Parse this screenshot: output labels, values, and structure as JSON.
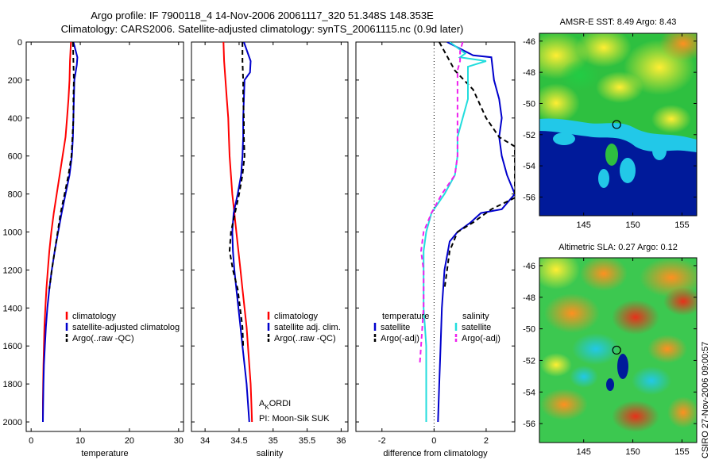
{
  "header": {
    "line1": "Argo profile: IF 7900118_4 14-Nov-2006 20061117_320 51.348S 148.353E",
    "line2": "Climatology: CARS2006. Satellite-adjusted climatology: synTS_20061115.nc (0.9d later)"
  },
  "colors": {
    "red": "#ff0000",
    "blue": "#0000cc",
    "black": "#000000",
    "cyan": "#22dddd",
    "magenta": "#ee22ee"
  },
  "chart_data": [
    {
      "id": "temperature",
      "type": "line",
      "xlabel": "temperature",
      "ylabel": "",
      "xlim": [
        -1,
        31
      ],
      "ylim": [
        2050,
        0
      ],
      "xticks": [
        0,
        10,
        20,
        30
      ],
      "yticks": [
        0,
        200,
        400,
        600,
        800,
        1000,
        1200,
        1400,
        1600,
        1800,
        2000
      ],
      "legend": {
        "position": "bottom-right",
        "entries": [
          "climatology",
          "satellite-adjusted climatolog",
          "Argo(..raw -QC)"
        ]
      },
      "series": [
        {
          "name": "climatology",
          "color": "red",
          "dash": false,
          "points": [
            [
              8.1,
              0
            ],
            [
              7.9,
              100
            ],
            [
              7.8,
              200
            ],
            [
              7.6,
              300
            ],
            [
              7.3,
              400
            ],
            [
              7.0,
              500
            ],
            [
              6.4,
              600
            ],
            [
              5.8,
              700
            ],
            [
              5.2,
              800
            ],
            [
              4.6,
              900
            ],
            [
              4.1,
              1000
            ],
            [
              3.7,
              1100
            ],
            [
              3.4,
              1200
            ],
            [
              3.1,
              1300
            ],
            [
              2.9,
              1400
            ],
            [
              2.7,
              1500
            ],
            [
              2.6,
              1600
            ],
            [
              2.5,
              1700
            ],
            [
              2.45,
              1800
            ],
            [
              2.4,
              1900
            ],
            [
              2.4,
              2000
            ]
          ]
        },
        {
          "name": "satellite-adjusted climatolog",
          "color": "blue",
          "dash": false,
          "points": [
            [
              8.6,
              0
            ],
            [
              9.4,
              80
            ],
            [
              9.3,
              120
            ],
            [
              8.8,
              200
            ],
            [
              8.7,
              300
            ],
            [
              8.6,
              400
            ],
            [
              8.5,
              500
            ],
            [
              8.3,
              600
            ],
            [
              7.8,
              700
            ],
            [
              7.0,
              800
            ],
            [
              6.2,
              900
            ],
            [
              5.5,
              1000
            ],
            [
              4.8,
              1100
            ],
            [
              4.2,
              1200
            ],
            [
              3.7,
              1300
            ],
            [
              3.3,
              1400
            ],
            [
              3.0,
              1500
            ],
            [
              2.8,
              1600
            ],
            [
              2.6,
              1700
            ],
            [
              2.5,
              1800
            ],
            [
              2.45,
              1900
            ],
            [
              2.4,
              2000
            ]
          ]
        },
        {
          "name": "Argo(..raw -QC)",
          "color": "black",
          "dash": true,
          "points": [
            [
              8.5,
              0
            ],
            [
              8.6,
              100
            ],
            [
              8.7,
              200
            ],
            [
              8.6,
              300
            ],
            [
              8.6,
              400
            ],
            [
              8.4,
              500
            ],
            [
              8.2,
              600
            ],
            [
              7.6,
              700
            ],
            [
              6.8,
              800
            ],
            [
              6.0,
              900
            ],
            [
              5.4,
              1000
            ],
            [
              4.8,
              1100
            ],
            [
              4.2,
              1200
            ],
            [
              3.7,
              1300
            ]
          ]
        }
      ]
    },
    {
      "id": "salinity",
      "type": "line",
      "xlabel": "salinity",
      "ylabel": "",
      "xlim": [
        33.8,
        36.1
      ],
      "ylim": [
        2050,
        0
      ],
      "xticks": [
        34,
        34.5,
        35,
        35.5,
        36
      ],
      "yticks": [
        0,
        200,
        400,
        600,
        800,
        1000,
        1200,
        1400,
        1600,
        1800,
        2000
      ],
      "legend": {
        "position": "bottom-right",
        "entries": [
          "climatology",
          "satellite adj. clim.",
          "Argo(..raw -QC)"
        ]
      },
      "series": [
        {
          "name": "climatology",
          "color": "red",
          "dash": false,
          "points": [
            [
              34.27,
              0
            ],
            [
              34.28,
              100
            ],
            [
              34.3,
              200
            ],
            [
              34.32,
              300
            ],
            [
              34.34,
              400
            ],
            [
              34.35,
              500
            ],
            [
              34.36,
              600
            ],
            [
              34.38,
              700
            ],
            [
              34.4,
              800
            ],
            [
              34.43,
              900
            ],
            [
              34.46,
              1000
            ],
            [
              34.49,
              1100
            ],
            [
              34.52,
              1200
            ],
            [
              34.55,
              1300
            ],
            [
              34.58,
              1400
            ],
            [
              34.61,
              1500
            ],
            [
              34.63,
              1600
            ],
            [
              34.65,
              1700
            ],
            [
              34.67,
              1800
            ],
            [
              34.68,
              1900
            ],
            [
              34.69,
              2000
            ]
          ]
        },
        {
          "name": "satellite adj. clim.",
          "color": "blue",
          "dash": false,
          "points": [
            [
              34.57,
              0
            ],
            [
              34.62,
              50
            ],
            [
              34.67,
              100
            ],
            [
              34.66,
              160
            ],
            [
              34.58,
              200
            ],
            [
              34.57,
              300
            ],
            [
              34.56,
              400
            ],
            [
              34.56,
              500
            ],
            [
              34.55,
              600
            ],
            [
              34.53,
              700
            ],
            [
              34.48,
              800
            ],
            [
              34.42,
              900
            ],
            [
              34.4,
              1000
            ],
            [
              34.41,
              1100
            ],
            [
              34.43,
              1200
            ],
            [
              34.46,
              1300
            ],
            [
              34.49,
              1400
            ],
            [
              34.52,
              1500
            ],
            [
              34.55,
              1600
            ],
            [
              34.58,
              1700
            ],
            [
              34.61,
              1800
            ],
            [
              34.63,
              1900
            ],
            [
              34.65,
              2000
            ]
          ]
        },
        {
          "name": "Argo(..raw -QC)",
          "color": "black",
          "dash": true,
          "points": [
            [
              34.55,
              0
            ],
            [
              34.55,
              100
            ],
            [
              34.56,
              200
            ],
            [
              34.56,
              300
            ],
            [
              34.57,
              400
            ],
            [
              34.57,
              500
            ],
            [
              34.58,
              600
            ],
            [
              34.55,
              700
            ],
            [
              34.5,
              800
            ],
            [
              34.44,
              900
            ],
            [
              34.38,
              1000
            ],
            [
              34.36,
              1100
            ],
            [
              34.41,
              1200
            ],
            [
              34.48,
              1300
            ],
            [
              34.55,
              1500
            ],
            [
              34.56,
              1600
            ]
          ]
        }
      ],
      "annotation": {
        "a_prefix": "A",
        "a_sub": "K",
        "a_suffix": "ORDI",
        "pi": "PI: Moon-Sik SUK"
      }
    },
    {
      "id": "difference",
      "type": "line",
      "xlabel": "difference from climatology",
      "ylabel": "",
      "xlim": [
        -3,
        3.1
      ],
      "ylim": [
        2050,
        0
      ],
      "xticks": [
        -2,
        0,
        2
      ],
      "yticks": [
        0,
        200,
        400,
        600,
        800,
        1000,
        1200,
        1400,
        1600,
        1800,
        2000
      ],
      "zero_line": true,
      "legend": {
        "position": "bottom",
        "col1_title": "temperature",
        "col2_title": "salinity",
        "entries_col1": [
          "satellite",
          "Argo(-adj)"
        ],
        "entries_col2": [
          "satellite",
          "Argo(-adj)"
        ]
      },
      "series": [
        {
          "name": "temperature satellite",
          "color": "blue",
          "dash": false,
          "points": [
            [
              0.5,
              0
            ],
            [
              1.5,
              70
            ],
            [
              2.2,
              80
            ],
            [
              2.3,
              200
            ],
            [
              2.5,
              300
            ],
            [
              2.6,
              400
            ],
            [
              2.5,
              500
            ],
            [
              2.6,
              600
            ],
            [
              2.8,
              700
            ],
            [
              3.1,
              800
            ],
            [
              2.6,
              880
            ],
            [
              1.8,
              900
            ],
            [
              1.4,
              950
            ],
            [
              0.9,
              1000
            ],
            [
              0.6,
              1050
            ],
            [
              0.4,
              1200
            ],
            [
              0.3,
              1400
            ],
            [
              0.25,
              1600
            ],
            [
              0.2,
              1800
            ],
            [
              0.15,
              2000
            ]
          ]
        },
        {
          "name": "temperature Argo(-adj)",
          "color": "black",
          "dash": true,
          "points": [
            [
              0.2,
              0
            ],
            [
              0.4,
              50
            ],
            [
              0.8,
              150
            ],
            [
              1.5,
              250
            ],
            [
              2.0,
              400
            ],
            [
              2.5,
              500
            ],
            [
              3.1,
              550
            ],
            [
              3.1,
              820
            ],
            [
              2.2,
              880
            ],
            [
              1.5,
              950
            ],
            [
              0.9,
              1000
            ],
            [
              0.6,
              1100
            ],
            [
              0.4,
              1300
            ]
          ]
        },
        {
          "name": "salinity satellite",
          "color": "cyan",
          "dash": false,
          "points": [
            [
              0.6,
              0
            ],
            [
              1.2,
              60
            ],
            [
              1.0,
              80
            ],
            [
              2.0,
              100
            ],
            [
              1.3,
              130
            ],
            [
              1.3,
              200
            ],
            [
              1.3,
              300
            ],
            [
              1.1,
              400
            ],
            [
              0.9,
              500
            ],
            [
              0.9,
              600
            ],
            [
              0.8,
              700
            ],
            [
              0.4,
              800
            ],
            [
              -0.1,
              900
            ],
            [
              -0.3,
              1000
            ],
            [
              -0.4,
              1100
            ],
            [
              -0.4,
              1200
            ],
            [
              -0.4,
              1300
            ],
            [
              -0.4,
              1400
            ],
            [
              -0.35,
              1500
            ],
            [
              -0.3,
              1600
            ],
            [
              -0.3,
              1700
            ],
            [
              -0.3,
              1800
            ],
            [
              -0.3,
              1900
            ],
            [
              -0.3,
              2000
            ]
          ]
        },
        {
          "name": "salinity Argo(-adj)",
          "color": "magenta",
          "dash": true,
          "points": [
            [
              1.1,
              0
            ],
            [
              1.0,
              50
            ],
            [
              1.0,
              100
            ],
            [
              0.9,
              150
            ],
            [
              0.9,
              200
            ],
            [
              0.9,
              300
            ],
            [
              0.9,
              400
            ],
            [
              0.9,
              500
            ],
            [
              0.9,
              600
            ],
            [
              0.8,
              700
            ],
            [
              0.3,
              800
            ],
            [
              -0.1,
              900
            ],
            [
              -0.4,
              1000
            ],
            [
              -0.5,
              1100
            ],
            [
              -0.4,
              1200
            ],
            [
              -0.4,
              1300
            ],
            [
              -0.4,
              1400
            ],
            [
              -0.45,
              1500
            ],
            [
              -0.5,
              1600
            ],
            [
              -0.55,
              1700
            ]
          ]
        }
      ]
    },
    {
      "id": "amsr-sst-map",
      "type": "heatmap",
      "title": "AMSR-E SST: 8.49 Argo: 8.43",
      "xlim": [
        140.5,
        156.5
      ],
      "ylim": [
        -57.2,
        -45.5
      ],
      "xticks": [
        145,
        150,
        155
      ],
      "yticks": [
        -46,
        -48,
        -50,
        -52,
        -54,
        -56
      ],
      "marker": {
        "lon": 148.353,
        "lat": -51.348
      }
    },
    {
      "id": "sla-map",
      "type": "heatmap",
      "title": "Altimetric SLA: 0.27 Argo: 0.12",
      "xlim": [
        140.5,
        156.5
      ],
      "ylim": [
        -57.2,
        -45.5
      ],
      "xticks": [
        145,
        150,
        155
      ],
      "yticks": [
        -46,
        -48,
        -50,
        -52,
        -54,
        -56
      ],
      "marker": {
        "lon": 148.353,
        "lat": -51.348
      }
    }
  ],
  "credit": "CSIRO 27-Nov-2006 09:00:57"
}
